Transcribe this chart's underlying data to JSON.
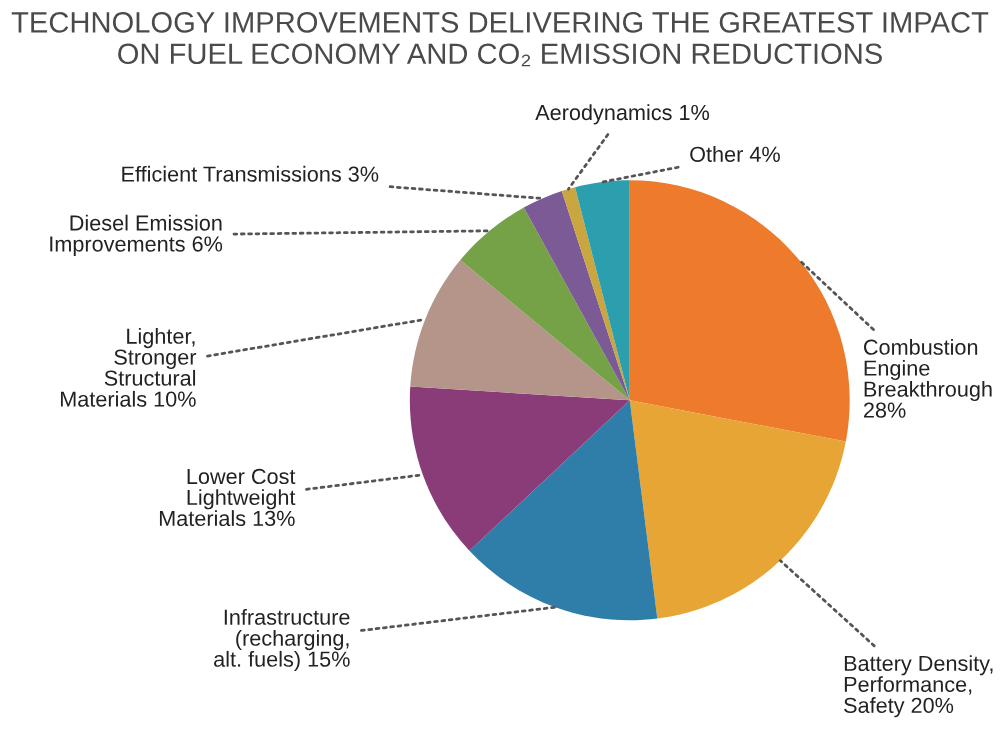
{
  "chart_data": {
    "type": "pie",
    "title": "TECHNOLOGY IMPROVEMENTS DELIVERING THE GREATEST IMPACT\nON FUEL ECONOMY AND CO₂ EMISSION REDUCTIONS",
    "categories": [
      "Combustion\nEngine\nBreakthrough\n28%",
      "Battery Density,\nPerformance,\nSafety 20%",
      "Infrastructure\n(recharging,\nalt. fuels) 15%",
      "Lower Cost\nLightweight\nMaterials 13%",
      "Lighter,\nStronger\nStructural\nMaterials 10%",
      "Diesel Emission\nImprovements 6%",
      "Efficient Transmissions 3%",
      "Aerodynamics 1%",
      "Other 4%"
    ],
    "values": [
      28,
      20,
      15,
      13,
      10,
      6,
      3,
      1,
      4
    ],
    "colors": [
      "#ee7a2c",
      "#e6a535",
      "#2f7ea9",
      "#8a3c78",
      "#b5948a",
      "#76a247",
      "#7b5a95",
      "#c9a640",
      "#2b9fae"
    ],
    "legend": false
  }
}
